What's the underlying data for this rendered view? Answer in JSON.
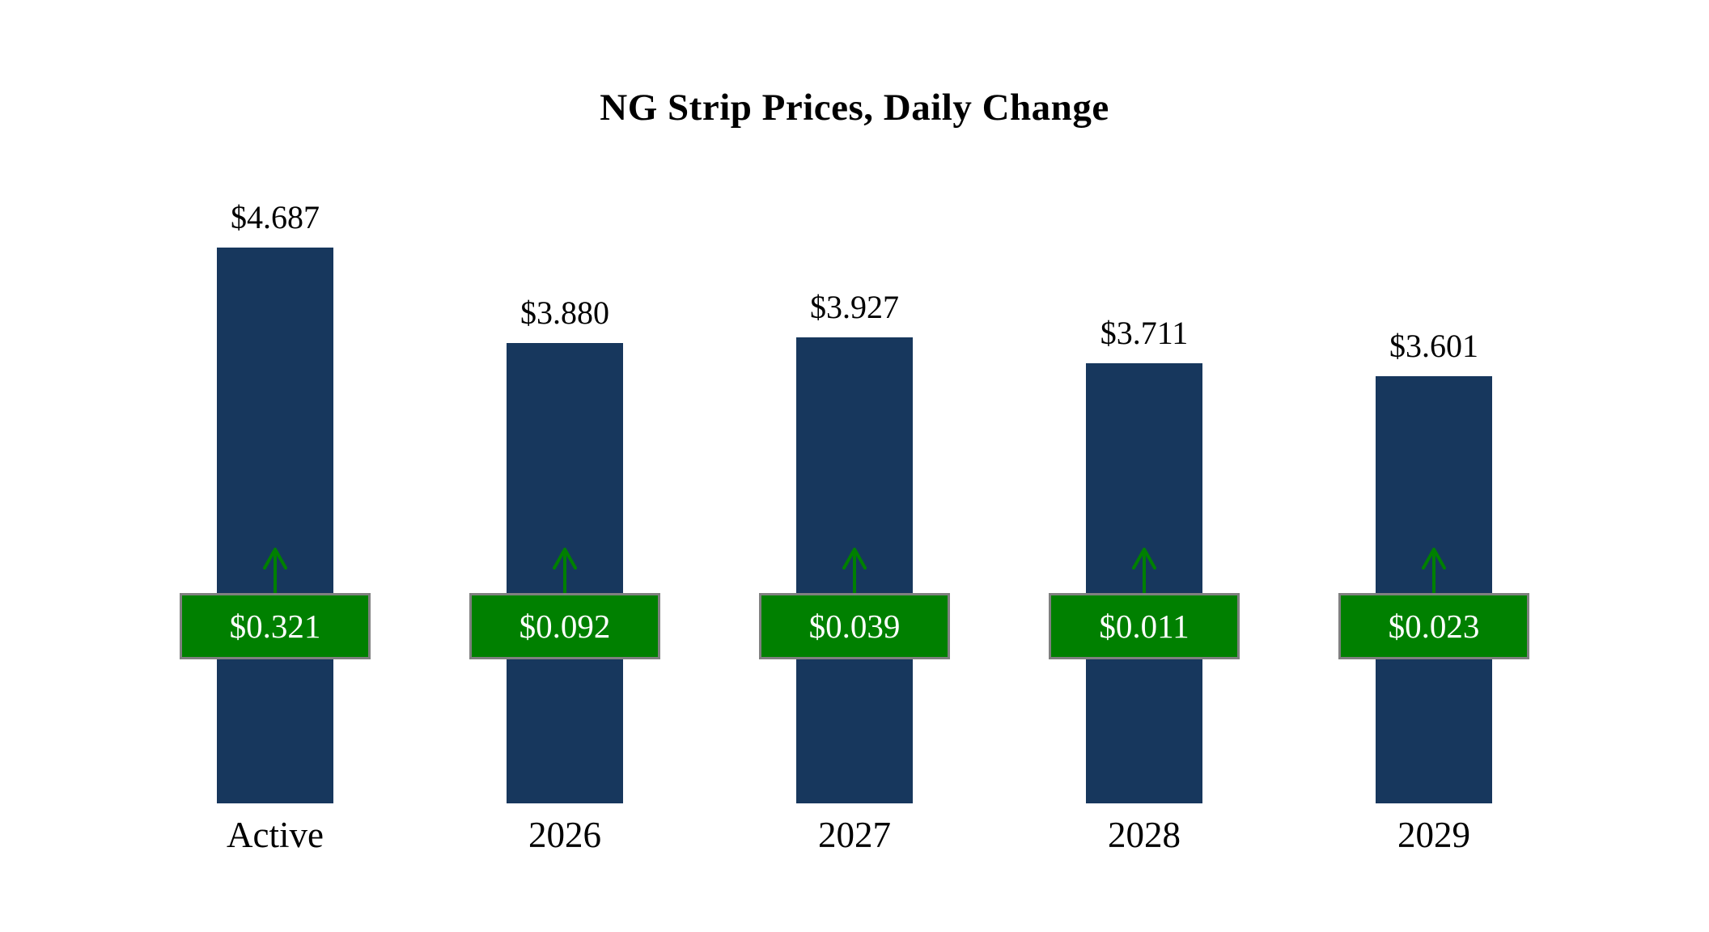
{
  "title": "NG Strip Prices, Daily Change",
  "colors": {
    "bar": "#17375D",
    "change_badge": "#008000",
    "badge_border": "#808080",
    "arrow": "#008000",
    "text": "#000000",
    "badge_text": "#FFFFFF"
  },
  "chart_data": {
    "type": "bar",
    "title": "NG Strip Prices, Daily Change",
    "categories": [
      "Active",
      "2026",
      "2027",
      "2028",
      "2029"
    ],
    "series": [
      {
        "name": "Strip Price",
        "values": [
          4.687,
          3.88,
          3.927,
          3.711,
          3.601
        ]
      },
      {
        "name": "Daily Change",
        "values": [
          0.321,
          0.092,
          0.039,
          0.011,
          0.023
        ]
      }
    ],
    "value_labels": [
      "$4.687",
      "$3.880",
      "$3.927",
      "$3.711",
      "$3.601"
    ],
    "change_labels": [
      "$0.321",
      "$0.092",
      "$0.039",
      "$0.011",
      "$0.023"
    ],
    "ylim": [
      0,
      4.687
    ],
    "grid": false,
    "legend": "none",
    "change_direction": "up"
  }
}
